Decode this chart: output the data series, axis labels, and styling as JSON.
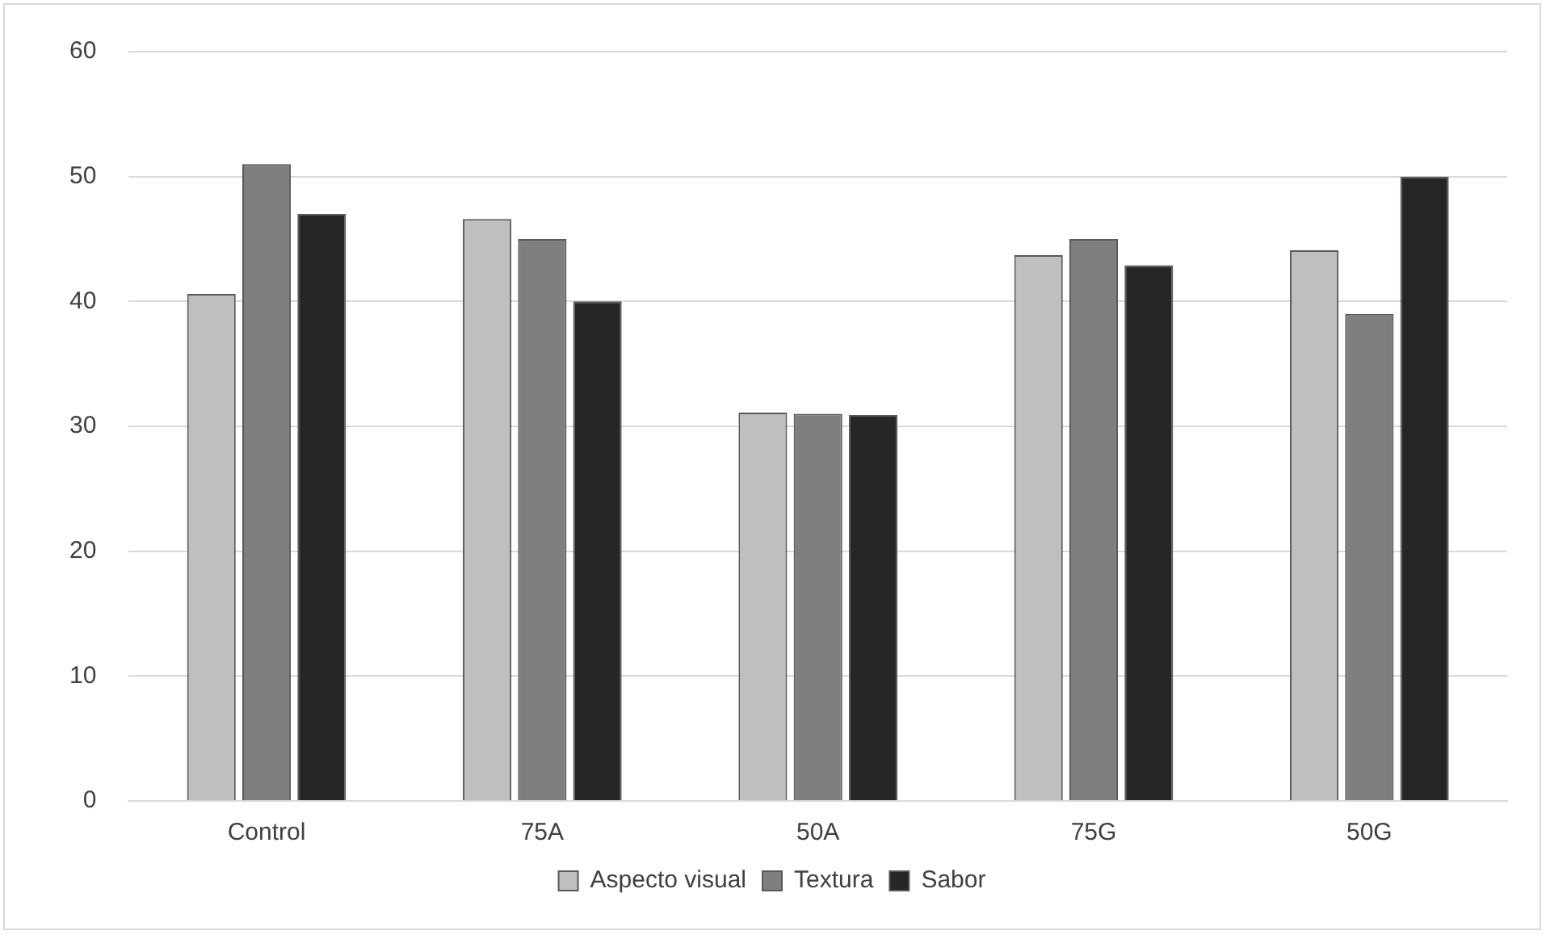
{
  "chart_data": {
    "type": "bar",
    "categories": [
      "Control",
      "75A",
      "50A",
      "75G",
      "50G"
    ],
    "series": [
      {
        "name": "Aspecto visual",
        "color": "#bfbfbf",
        "values": [
          40.6,
          46.6,
          31.1,
          43.7,
          44.1
        ]
      },
      {
        "name": "Textura",
        "color": "#7f7f7f",
        "values": [
          51,
          45,
          31,
          45,
          39
        ]
      },
      {
        "name": "Sabor",
        "color": "#262626",
        "values": [
          47,
          40,
          30.9,
          42.9,
          50
        ]
      }
    ],
    "ylim": [
      0,
      60
    ],
    "yticks": [
      0,
      10,
      20,
      30,
      40,
      50,
      60
    ],
    "grid": "y",
    "legend": "bottom"
  }
}
